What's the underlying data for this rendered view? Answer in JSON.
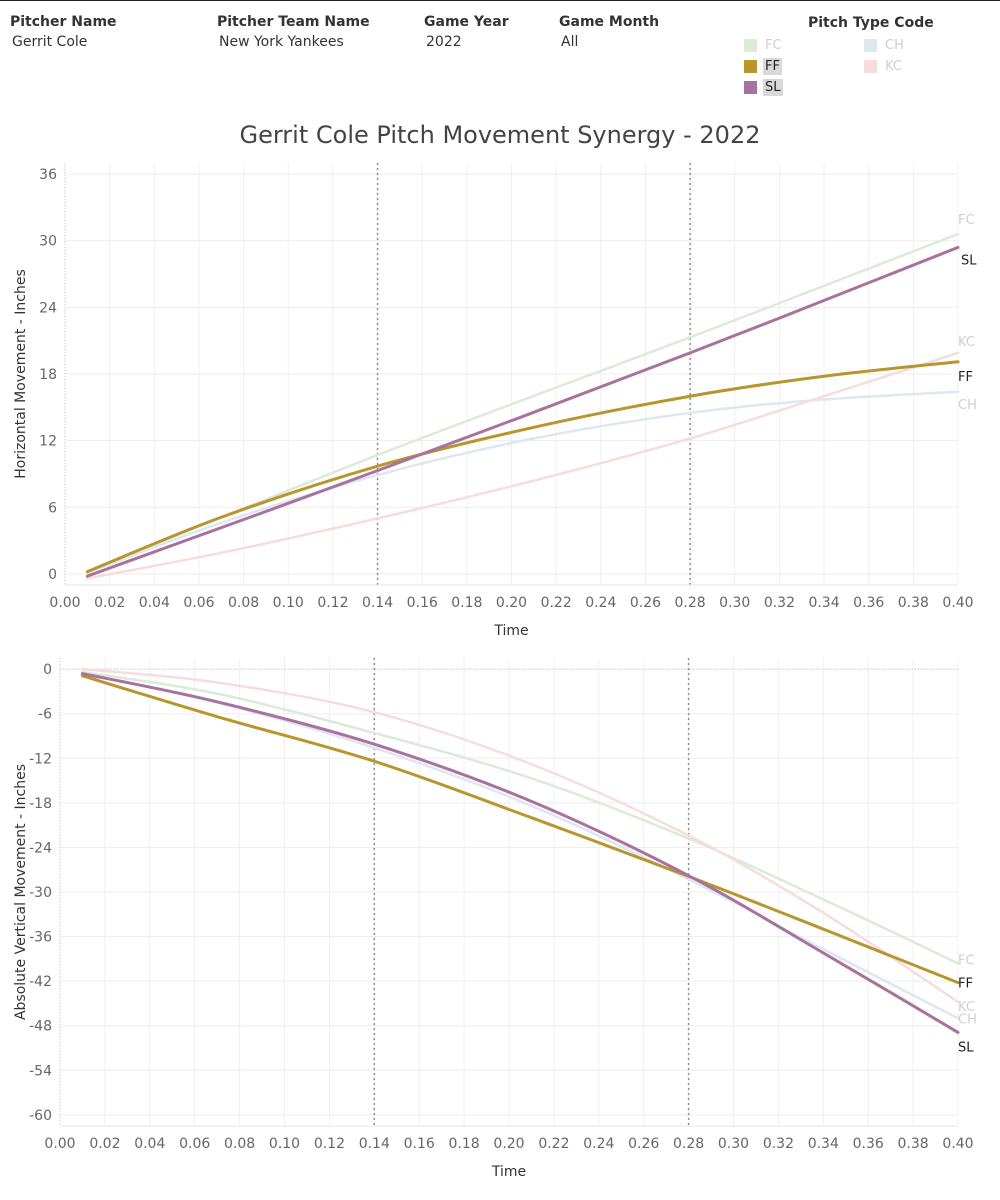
{
  "filters": [
    {
      "label": "Pitcher Name",
      "value": "Gerrit Cole"
    },
    {
      "label": "Pitcher Team Name",
      "value": "New York Yankees"
    },
    {
      "label": "Game Year",
      "value": "2022"
    },
    {
      "label": "Game Month",
      "value": "All"
    }
  ],
  "legend": {
    "title": "Pitch Type Code",
    "items": [
      {
        "code": "FC",
        "color": "#dcebd6",
        "selected": false
      },
      {
        "code": "FF",
        "color": "#b8952d",
        "selected": true
      },
      {
        "code": "SL",
        "color": "#a8729f",
        "selected": true
      },
      {
        "code": "CH",
        "color": "#dde7f2",
        "selected": false
      },
      {
        "code": "KC",
        "color": "#f6dcdc",
        "selected": false
      }
    ]
  },
  "chart_title": "Gerrit Cole Pitch Movement Synergy - 2022",
  "chart_data": [
    {
      "type": "line",
      "xlabel": "Time",
      "ylabel": "Horizontal Movement - Inches",
      "xlim": [
        0.0,
        0.4
      ],
      "ylim": [
        -1,
        37
      ],
      "xticks": [
        "0.00",
        "0.02",
        "0.04",
        "0.06",
        "0.08",
        "0.10",
        "0.12",
        "0.14",
        "0.16",
        "0.18",
        "0.20",
        "0.22",
        "0.24",
        "0.26",
        "0.28",
        "0.30",
        "0.32",
        "0.34",
        "0.36",
        "0.38",
        "0.40"
      ],
      "yticks": [
        0,
        6,
        12,
        18,
        24,
        30,
        36
      ],
      "reference_lines_x": [
        0.14,
        0.28
      ],
      "grid": true,
      "series": [
        {
          "name": "FC",
          "x": [
            0.01,
            0.14,
            0.28,
            0.4
          ],
          "y": [
            0.2,
            10.7,
            21.3,
            30.6
          ]
        },
        {
          "name": "CH",
          "x": [
            0.01,
            0.07,
            0.14,
            0.21,
            0.28,
            0.34,
            0.4
          ],
          "y": [
            0.1,
            4.6,
            8.9,
            12.2,
            14.5,
            15.7,
            16.4
          ]
        },
        {
          "name": "KC",
          "x": [
            0.01,
            0.07,
            0.14,
            0.21,
            0.28,
            0.34,
            0.4
          ],
          "y": [
            -0.4,
            1.9,
            5.0,
            8.4,
            12.2,
            16.0,
            19.9
          ]
        },
        {
          "name": "FF",
          "x": [
            0.01,
            0.07,
            0.14,
            0.21,
            0.28,
            0.34,
            0.4
          ],
          "y": [
            0.2,
            5.1,
            9.7,
            13.2,
            16.0,
            17.8,
            19.1
          ]
        },
        {
          "name": "SL",
          "x": [
            0.01,
            0.14,
            0.28,
            0.4
          ],
          "y": [
            -0.2,
            9.3,
            19.9,
            29.4
          ]
        }
      ]
    },
    {
      "type": "line",
      "xlabel": "Time",
      "ylabel": "Absolute Vertical Movement - Inches",
      "xlim": [
        0.0,
        0.4
      ],
      "ylim": [
        -61.5,
        1.5
      ],
      "xticks": [
        "0.00",
        "0.02",
        "0.04",
        "0.06",
        "0.08",
        "0.10",
        "0.12",
        "0.14",
        "0.16",
        "0.18",
        "0.20",
        "0.22",
        "0.24",
        "0.26",
        "0.28",
        "0.30",
        "0.32",
        "0.34",
        "0.36",
        "0.38",
        "0.40"
      ],
      "yticks": [
        0,
        -6,
        -12,
        -18,
        -24,
        -30,
        -36,
        -42,
        -48,
        -54,
        -60
      ],
      "reference_lines_x": [
        0.14,
        0.28
      ],
      "zero_line": true,
      "grid": true,
      "series": [
        {
          "name": "FC",
          "x": [
            0.01,
            0.07,
            0.14,
            0.21,
            0.28,
            0.34,
            0.4
          ],
          "y": [
            -0.4,
            -3.3,
            -8.6,
            -14.7,
            -22.8,
            -31.0,
            -39.6
          ]
        },
        {
          "name": "CH",
          "x": [
            0.01,
            0.07,
            0.14,
            0.21,
            0.28,
            0.34,
            0.4
          ],
          "y": [
            -0.6,
            -4.5,
            -10.6,
            -18.4,
            -28.3,
            -37.7,
            -47.0
          ]
        },
        {
          "name": "KC",
          "x": [
            0.01,
            0.07,
            0.14,
            0.21,
            0.28,
            0.34,
            0.4
          ],
          "y": [
            0.0,
            -1.8,
            -5.8,
            -12.8,
            -22.4,
            -32.8,
            -44.8
          ]
        },
        {
          "name": "FF",
          "x": [
            0.01,
            0.07,
            0.14,
            0.21,
            0.28,
            0.34,
            0.4
          ],
          "y": [
            -0.9,
            -6.4,
            -12.4,
            -20.0,
            -27.9,
            -35.0,
            -42.2
          ]
        },
        {
          "name": "SL",
          "x": [
            0.01,
            0.07,
            0.14,
            0.21,
            0.28,
            0.34,
            0.4
          ],
          "y": [
            -0.6,
            -4.4,
            -10.1,
            -17.8,
            -27.8,
            -38.2,
            -48.9
          ]
        }
      ]
    }
  ]
}
